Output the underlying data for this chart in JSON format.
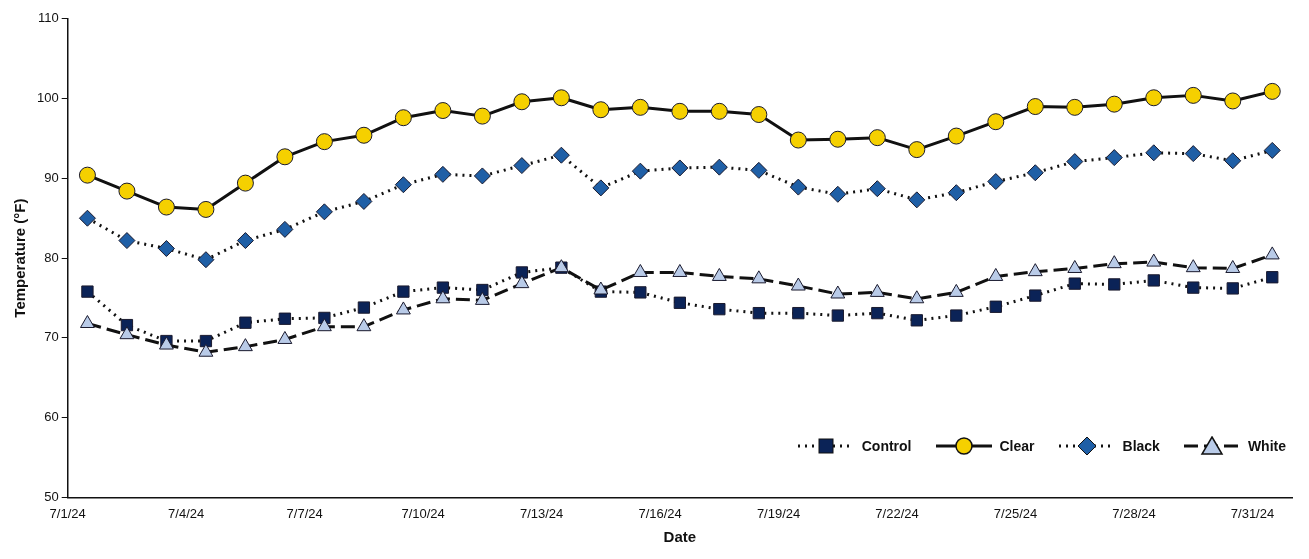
{
  "chart_data": {
    "type": "line",
    "xlabel": "Date",
    "ylabel": "Temperature (°F)",
    "x": [
      "--07-01T12:00",
      "--07-02T12:00",
      "--07-03T12:00",
      "--07-04T12:00",
      "--07-05T12:00",
      "--07-06T12:00",
      "--07-07T12:00",
      "--07-08T12:00",
      "--07-09T12:00",
      "--07-10T12:00",
      "--07-11T12:00",
      "--07-12T12:00",
      "--07-13T12:00",
      "--07-14T12:00",
      "--07-15T12:00",
      "--07-16T12:00",
      "--07-17T12:00",
      "--07-18T12:00",
      "--07-19T12:00",
      "--07-20T12:00",
      "--07-21T12:00",
      "--07-22T12:00",
      "--07-23T12:00",
      "--07-24T12:00",
      "--07-25T12:00",
      "--07-26T12:00",
      "--07-27T12:00",
      "--07-28T12:00",
      "--07-29T12:00",
      "--07-30T12:00",
      "--07-31T12:00"
    ],
    "xlim": [
      "--07-01",
      "--08-01"
    ],
    "xticks": [
      {
        "value": "--07-01",
        "label": "7/1/24"
      },
      {
        "value": "--07-04",
        "label": "7/4/24"
      },
      {
        "value": "--07-07",
        "label": "7/7/24"
      },
      {
        "value": "--07-10",
        "label": "7/10/24"
      },
      {
        "value": "--07-13",
        "label": "7/13/24"
      },
      {
        "value": "--07-16",
        "label": "7/16/24"
      },
      {
        "value": "--07-19",
        "label": "7/19/24"
      },
      {
        "value": "--07-22",
        "label": "7/22/24"
      },
      {
        "value": "--07-25",
        "label": "7/25/24"
      },
      {
        "value": "--07-28",
        "label": "7/28/24"
      },
      {
        "value": "--07-31",
        "label": "7/31/24"
      }
    ],
    "ylim": [
      50,
      110
    ],
    "yticks": [
      50,
      60,
      70,
      80,
      90,
      100,
      110
    ],
    "grid": false,
    "legend": "bottom right",
    "series": [
      {
        "name": "Control",
        "color": "#0b2357",
        "marker": "square",
        "line_style": "dotted",
        "values": [
          75.8,
          71.6,
          69.6,
          69.6,
          71.9,
          72.4,
          72.5,
          73.8,
          75.8,
          76.3,
          76.0,
          78.2,
          78.8,
          75.8,
          75.7,
          74.4,
          73.6,
          73.1,
          73.1,
          72.8,
          73.1,
          72.2,
          72.8,
          73.9,
          75.3,
          76.8,
          76.7,
          77.2,
          76.3,
          76.2,
          77.6
        ]
      },
      {
        "name": "Clear",
        "color": "#f5d000",
        "marker": "circle",
        "line_style": "solid",
        "values": [
          90.4,
          88.4,
          86.4,
          86.1,
          89.4,
          92.7,
          94.6,
          95.4,
          97.6,
          98.5,
          97.8,
          99.6,
          100.1,
          98.6,
          98.9,
          98.4,
          98.4,
          98.0,
          94.8,
          94.9,
          95.1,
          93.6,
          95.3,
          97.1,
          99.0,
          98.9,
          99.3,
          100.1,
          100.4,
          99.7,
          100.9
        ]
      },
      {
        "name": "Black",
        "color": "#1f5fa6",
        "marker": "diamond",
        "line_style": "dotted",
        "values": [
          85.0,
          82.2,
          81.2,
          79.8,
          82.2,
          83.6,
          85.8,
          87.1,
          89.2,
          90.5,
          90.3,
          91.6,
          92.9,
          88.8,
          90.9,
          91.3,
          91.4,
          91.0,
          88.9,
          88.0,
          88.7,
          87.3,
          88.2,
          89.6,
          90.7,
          92.1,
          92.6,
          93.2,
          93.1,
          92.2,
          93.5
        ]
      },
      {
        "name": "White",
        "color": "#b9cbe8",
        "marker": "triangle",
        "line_style": "dashed",
        "values": [
          71.8,
          70.4,
          69.1,
          68.2,
          68.9,
          69.8,
          71.4,
          71.4,
          73.5,
          74.9,
          74.7,
          76.8,
          78.8,
          76.0,
          78.2,
          78.2,
          77.7,
          77.4,
          76.5,
          75.5,
          75.7,
          74.9,
          75.7,
          77.7,
          78.3,
          78.7,
          79.3,
          79.5,
          78.8,
          78.7,
          80.4
        ]
      }
    ]
  }
}
